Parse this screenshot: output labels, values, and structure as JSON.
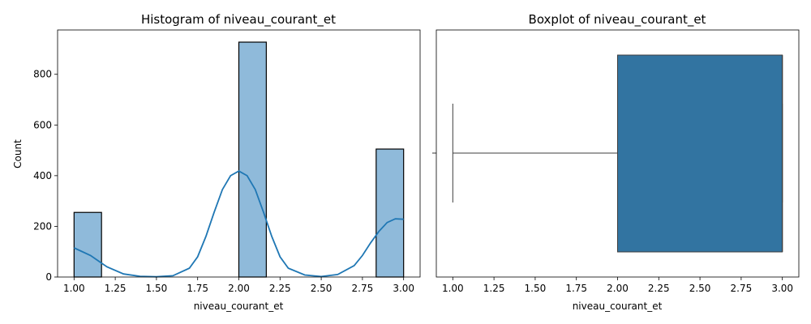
{
  "chart_data": [
    {
      "type": "bar",
      "title": "Histogram of niveau_courant_et",
      "xlabel": "niveau_courant_et",
      "ylabel": "Count",
      "xlim": [
        0.9,
        3.1
      ],
      "ylim": [
        0,
        975
      ],
      "x_ticks": [
        "1.00",
        "1.25",
        "1.50",
        "1.75",
        "2.00",
        "2.25",
        "2.50",
        "2.75",
        "3.00"
      ],
      "y_ticks": [
        "0",
        "200",
        "400",
        "600",
        "800"
      ],
      "bin_width": 0.1667,
      "bars": [
        {
          "x_start": 1.0,
          "count": 255
        },
        {
          "x_start": 2.0,
          "count": 927
        },
        {
          "x_start": 2.8333,
          "count": 505
        }
      ],
      "kde_line": {
        "x": [
          1.0,
          1.1,
          1.2,
          1.3,
          1.4,
          1.5,
          1.6,
          1.7,
          1.75,
          1.8,
          1.85,
          1.9,
          1.95,
          2.0,
          2.05,
          2.1,
          2.15,
          2.2,
          2.25,
          2.3,
          2.4,
          2.5,
          2.6,
          2.7,
          2.75,
          2.8,
          2.85,
          2.9,
          2.95,
          3.0
        ],
        "y": [
          115,
          85,
          40,
          12,
          3,
          1,
          5,
          35,
          80,
          160,
          255,
          345,
          400,
          418,
          400,
          345,
          255,
          160,
          80,
          35,
          8,
          2,
          10,
          45,
          85,
          135,
          180,
          215,
          230,
          228
        ]
      },
      "bar_color": "#8fbada",
      "line_color": "#1f77b4"
    },
    {
      "type": "box",
      "title": "Boxplot of niveau_courant_et",
      "xlabel": "niveau_courant_et",
      "xlim": [
        0.9,
        3.1
      ],
      "x_ticks": [
        "1.00",
        "1.25",
        "1.50",
        "1.75",
        "2.00",
        "2.25",
        "2.50",
        "2.75",
        "3.00"
      ],
      "whisker_low": 1.0,
      "q1": 2.0,
      "median": 3.0,
      "q3": 3.0,
      "whisker_high": 3.0,
      "box_color": "#3274a1"
    }
  ]
}
